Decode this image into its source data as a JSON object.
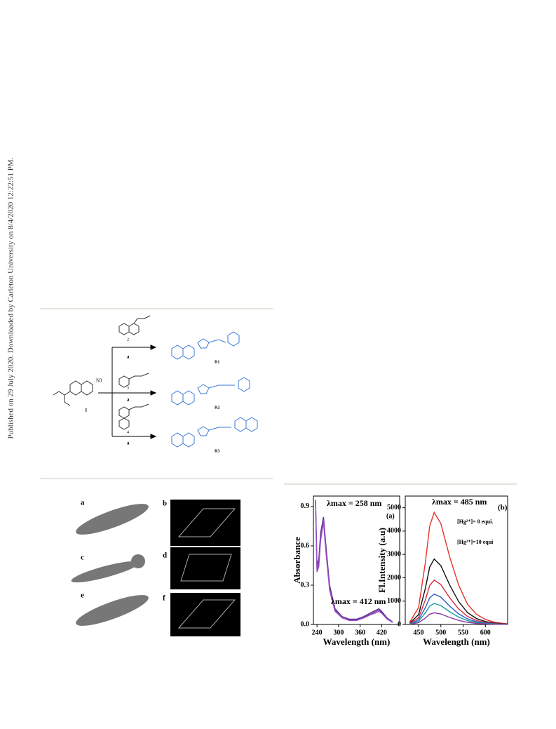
{
  "sidebar": "Published on 29 July 2020. Downloaded by Carleton University on 8/4/2020 12:22:51 PM.",
  "scheme": {
    "reactant": "1",
    "azide": "N3",
    "alkynes": [
      "2",
      "3",
      "4"
    ],
    "reagents": [
      "a",
      "a",
      "a"
    ],
    "products": [
      "R1",
      "R2",
      "R3"
    ]
  },
  "crystal": {
    "panels": [
      "a",
      "b",
      "c",
      "d",
      "e",
      "f"
    ]
  },
  "chart_data": [
    {
      "type": "line",
      "xlabel": "Wavelength (nm)",
      "ylabel": "Absorbance",
      "x": [
        236,
        240,
        245,
        250,
        258,
        265,
        275,
        290,
        310,
        330,
        350,
        370,
        390,
        405,
        412,
        420,
        435,
        450
      ],
      "xlim": [
        230,
        470
      ],
      "xticks": [
        240,
        300,
        360,
        420
      ],
      "ylim": [
        0,
        0.98
      ],
      "yticks": [
        {
          "value": 0,
          "label": "0.0"
        },
        0.3,
        0.6,
        0.9
      ],
      "annotations": [
        "λmax = 258 nm",
        "λmax = 412 nm",
        "(a)"
      ],
      "series": [
        {
          "color": "#5a2a8a",
          "values": [
            0.95,
            0.45,
            0.5,
            0.7,
            0.82,
            0.6,
            0.3,
            0.12,
            0.06,
            0.04,
            0.04,
            0.06,
            0.09,
            0.11,
            0.12,
            0.1,
            0.05,
            0.02
          ]
        },
        {
          "color": "#7b3fa8",
          "values": [
            0.93,
            0.42,
            0.47,
            0.67,
            0.8,
            0.57,
            0.28,
            0.11,
            0.05,
            0.035,
            0.035,
            0.055,
            0.08,
            0.1,
            0.11,
            0.09,
            0.045,
            0.02
          ]
        },
        {
          "color": "#9b4fc8",
          "values": [
            0.9,
            0.4,
            0.44,
            0.64,
            0.78,
            0.55,
            0.26,
            0.1,
            0.05,
            0.03,
            0.03,
            0.05,
            0.075,
            0.09,
            0.1,
            0.085,
            0.04,
            0.015
          ]
        }
      ]
    },
    {
      "type": "line",
      "xlabel": "Wavelength (nm)",
      "ylabel": "Fl.Intensity (a.u)",
      "x": [
        430,
        450,
        465,
        475,
        485,
        500,
        520,
        540,
        560,
        580,
        600,
        620,
        640,
        650
      ],
      "xlim": [
        420,
        650
      ],
      "xticks": [
        450,
        500,
        550,
        600
      ],
      "ylim": [
        0,
        5500
      ],
      "yticks": [
        0,
        1000,
        2000,
        3000,
        4000,
        5000
      ],
      "annotations": [
        "λmax = 485 nm",
        "(b)",
        "[Hg²⁺]= 0 equi.",
        "[Hg²⁺]=10 equi"
      ],
      "series": [
        {
          "color": "#e8302a",
          "values": [
            96,
            720,
            2640,
            4224,
            4800,
            4320,
            2880,
            1680,
            864,
            432,
            216,
            96,
            48,
            24
          ]
        },
        {
          "color": "#111111",
          "values": [
            56,
            420,
            1540,
            2464,
            2800,
            2520,
            1680,
            980,
            504,
            252,
            126,
            56,
            28,
            14
          ]
        },
        {
          "color": "#d9283a",
          "values": [
            38,
            285,
            1045,
            1672,
            1900,
            1710,
            1140,
            665,
            342,
            171,
            86,
            38,
            19,
            10
          ]
        },
        {
          "color": "#2a5fc8",
          "values": [
            26,
            195,
            715,
            1144,
            1300,
            1170,
            780,
            455,
            234,
            117,
            59,
            26,
            13,
            7
          ]
        },
        {
          "color": "#1a9a9a",
          "values": [
            18,
            135,
            495,
            792,
            900,
            810,
            540,
            315,
            162,
            81,
            41,
            18,
            9,
            5
          ]
        },
        {
          "color": "#8a3aa0",
          "values": [
            10,
            75,
            275,
            440,
            500,
            450,
            300,
            175,
            90,
            45,
            23,
            10,
            5,
            3
          ]
        }
      ]
    }
  ]
}
